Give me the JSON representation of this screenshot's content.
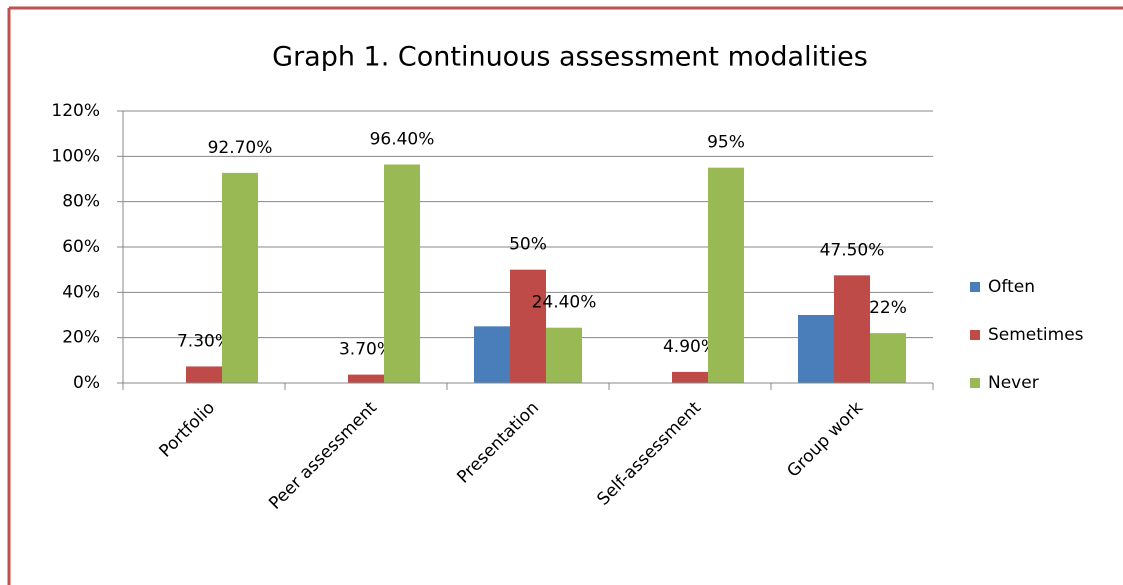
{
  "chart_data": {
    "type": "bar",
    "title": "Graph 1. Continuous assessment  modalities",
    "categories": [
      "Portfolio",
      "Peer assessment",
      "Presentation",
      "Self-assessment",
      "Group work"
    ],
    "series": [
      {
        "name": "Often",
        "color": "#4a7ebb",
        "values": [
          0,
          0,
          25,
          0,
          30
        ]
      },
      {
        "name": "Semetimes",
        "color": "#be4b48",
        "values": [
          7.3,
          3.7,
          50,
          4.9,
          47.5
        ],
        "value_labels": [
          "7.30%",
          "3.70%",
          "50%",
          "4.90%",
          "47.50%"
        ]
      },
      {
        "name": "Never",
        "color": "#98b954",
        "values": [
          92.7,
          96.4,
          24.4,
          95,
          22
        ],
        "value_labels": [
          "92.70%",
          "96.40%",
          "24.40%",
          "95%",
          "22%"
        ]
      }
    ],
    "ylim": [
      0,
      120
    ],
    "yticks": [
      {
        "value": 0,
        "label": "0%"
      },
      {
        "value": 20,
        "label": "20%"
      },
      {
        "value": 40,
        "label": "40%"
      },
      {
        "value": 60,
        "label": "60%"
      },
      {
        "value": 80,
        "label": "80%"
      },
      {
        "value": 100,
        "label": "100%"
      },
      {
        "value": 120,
        "label": "120%"
      }
    ],
    "grid": true,
    "legend": "right"
  }
}
